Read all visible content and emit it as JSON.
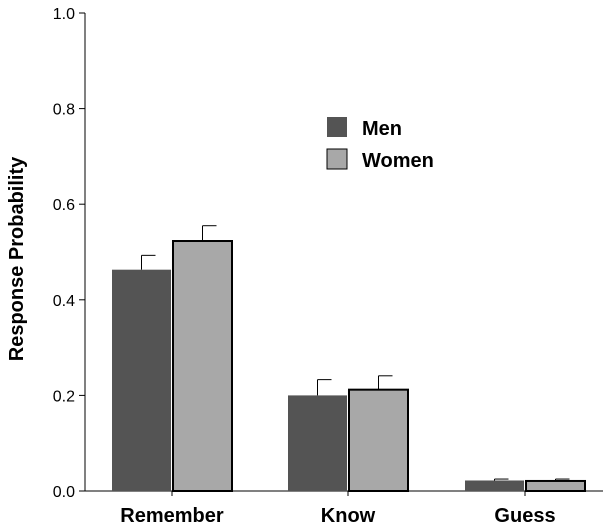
{
  "chart_data": {
    "type": "bar",
    "title": "",
    "xlabel": "",
    "ylabel": "Response Probability",
    "ylim": [
      0,
      1.0
    ],
    "yticks": [
      "0.0",
      "0.2",
      "0.4",
      "0.6",
      "0.8",
      "1.0"
    ],
    "categories": [
      "Remember",
      "Know",
      "Guess"
    ],
    "series": [
      {
        "name": "Men",
        "color": "#545454",
        "values": [
          0.463,
          0.2,
          0.022
        ],
        "errors": [
          0.03,
          0.033,
          0.003
        ]
      },
      {
        "name": "Women",
        "color": "#a8a8a8",
        "values": [
          0.523,
          0.212,
          0.021
        ],
        "errors": [
          0.032,
          0.029,
          0.004
        ]
      }
    ],
    "legend_position": "upper-center",
    "grid": false
  }
}
